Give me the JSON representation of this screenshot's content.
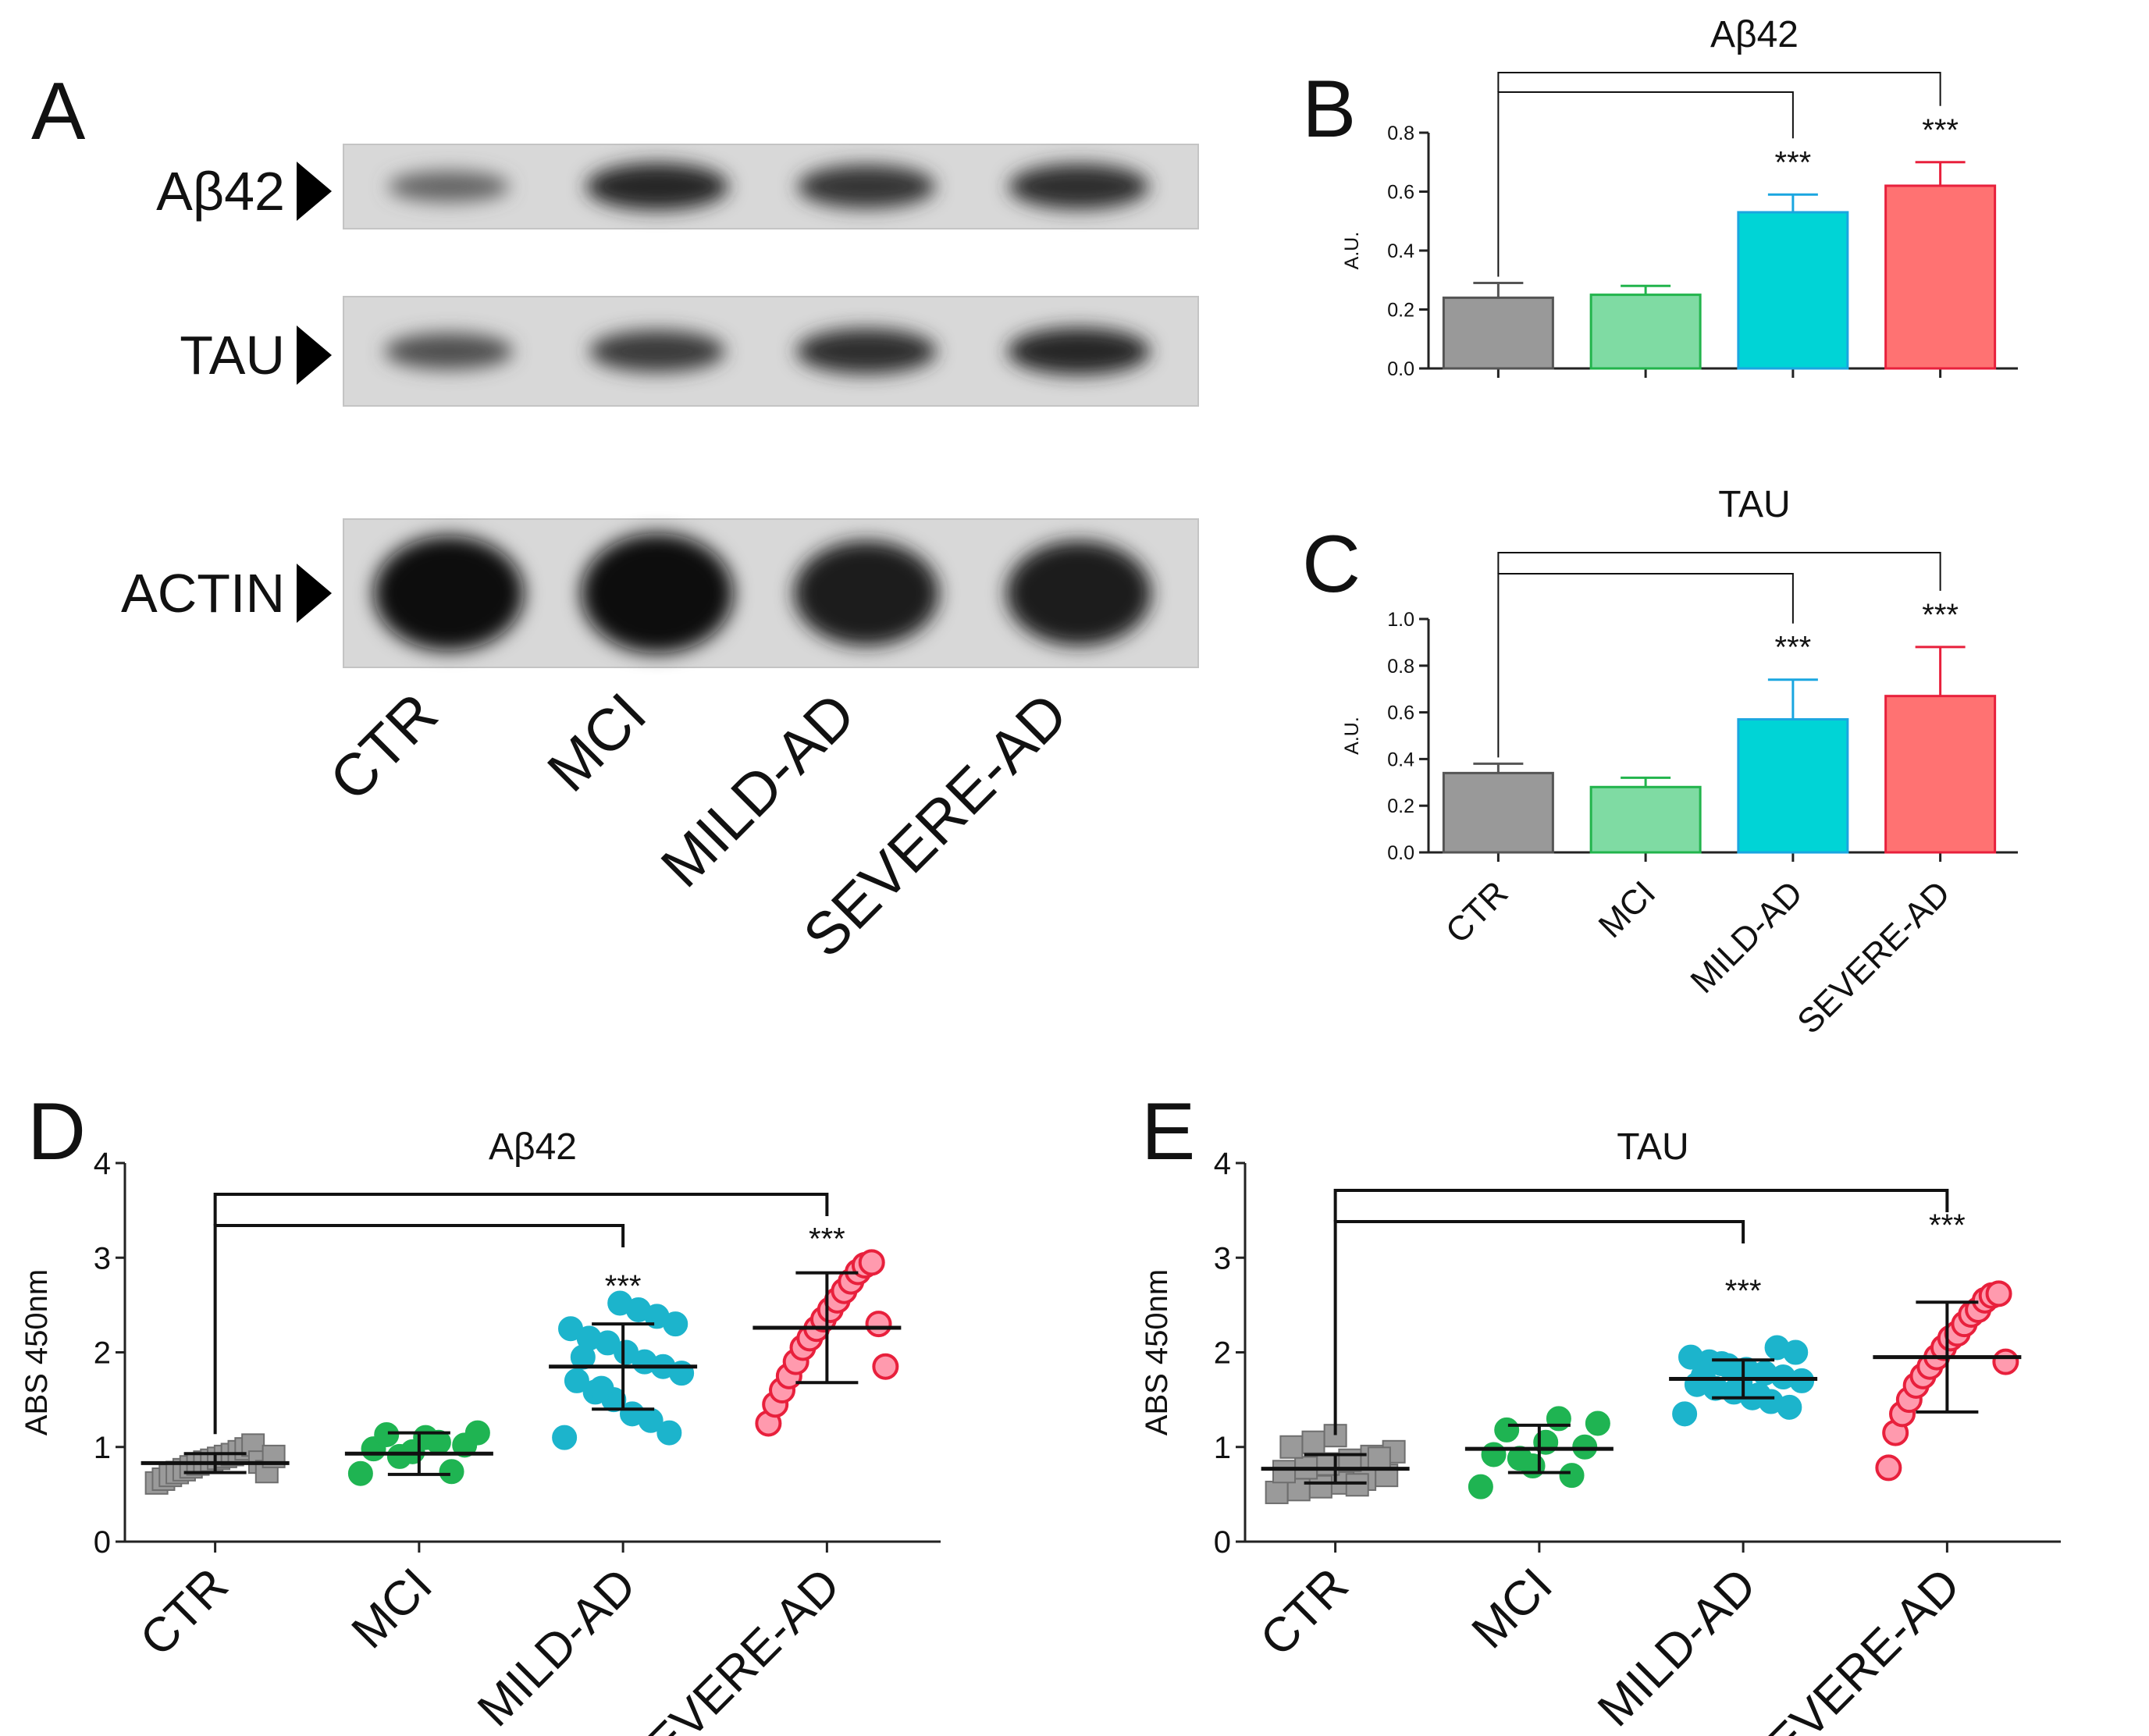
{
  "panels": {
    "A": {
      "letter": "A",
      "rows": [
        {
          "label": "Aβ42",
          "band_intensity": [
            0.35,
            0.8,
            0.7,
            0.75
          ]
        },
        {
          "label": "TAU",
          "band_intensity": [
            0.5,
            0.65,
            0.75,
            0.8
          ]
        },
        {
          "label": "ACTIN",
          "band_intensity": [
            0.95,
            1.0,
            0.85,
            0.85
          ]
        }
      ],
      "lanes": [
        "CTR",
        "MCI",
        "MILD-AD",
        "SEVERE-AD"
      ]
    },
    "B": {
      "letter": "B"
    },
    "C": {
      "letter": "C"
    },
    "D": {
      "letter": "D"
    },
    "E": {
      "letter": "E"
    }
  },
  "colors": {
    "CTR": "#999999",
    "MCI": "#7fdba3",
    "MILD-AD": "#00d4d6",
    "SEVERE-AD": "#ff7272",
    "CTR_edge": "#555555",
    "MCI_edge": "#22b44c",
    "MILD-AD_edge": "#1aa6e0",
    "SEVERE-AD_edge": "#e8203c",
    "MCI_dot": "#1fb452",
    "MILD-AD_dot": "#1cb4cc",
    "SEVERE-AD_dot": "#f25a78"
  },
  "chart_data": [
    {
      "panel": "B",
      "type": "bar",
      "title": "Aβ42",
      "ylabel": "A.U.",
      "categories": [
        "CTR",
        "MCI",
        "MILD-AD",
        "SEVERE-AD"
      ],
      "show_category_labels": false,
      "values": [
        0.24,
        0.25,
        0.53,
        0.62
      ],
      "errors": [
        0.05,
        0.03,
        0.06,
        0.08
      ],
      "ylim": [
        0,
        0.8
      ],
      "yticks": [
        "0.0",
        "0.2",
        "0.4",
        "0.6",
        "0.8"
      ],
      "significance": [
        {
          "from": "CTR",
          "to": "MILD-AD",
          "label": "***"
        },
        {
          "from": "CTR",
          "to": "SEVERE-AD",
          "label": "***"
        }
      ]
    },
    {
      "panel": "C",
      "type": "bar",
      "title": "TAU",
      "ylabel": "A.U.",
      "categories": [
        "CTR",
        "MCI",
        "MILD-AD",
        "SEVERE-AD"
      ],
      "show_category_labels": true,
      "values": [
        0.34,
        0.28,
        0.57,
        0.67
      ],
      "errors": [
        0.04,
        0.04,
        0.17,
        0.21
      ],
      "ylim": [
        0,
        1.0
      ],
      "yticks": [
        "0.0",
        "0.2",
        "0.4",
        "0.6",
        "0.8",
        "1.0"
      ],
      "significance": [
        {
          "from": "CTR",
          "to": "MILD-AD",
          "label": "***"
        },
        {
          "from": "CTR",
          "to": "SEVERE-AD",
          "label": "***"
        }
      ]
    },
    {
      "panel": "D",
      "type": "scatter",
      "title": "Aβ42",
      "ylabel": "ABS 450nm",
      "categories": [
        "CTR",
        "MCI",
        "MILD-AD",
        "SEVERE-AD"
      ],
      "ylim": [
        0,
        4
      ],
      "yticks": [
        "0",
        "1",
        "2",
        "3",
        "4"
      ],
      "groups": [
        {
          "name": "CTR",
          "marker": "square",
          "mean": 0.83,
          "sd": 0.1,
          "points": [
            0.62,
            0.66,
            0.7,
            0.73,
            0.76,
            0.79,
            0.82,
            0.84,
            0.86,
            0.88,
            0.9,
            0.92,
            0.95,
            0.98,
            1.02,
            0.84,
            0.74,
            0.9
          ]
        },
        {
          "name": "MCI",
          "marker": "circle",
          "mean": 0.93,
          "sd": 0.22,
          "points": [
            0.72,
            0.74,
            0.95,
            0.98,
            1.02,
            1.1,
            1.13,
            1.15,
            1.05,
            0.9
          ]
        },
        {
          "name": "MILD-AD",
          "marker": "circle",
          "mean": 1.85,
          "sd": 0.45,
          "points": [
            1.1,
            1.15,
            1.28,
            1.35,
            1.5,
            1.58,
            1.7,
            1.78,
            1.85,
            1.9,
            2.0,
            2.1,
            2.15,
            2.25,
            2.3,
            2.38,
            2.45,
            2.52,
            1.62,
            1.95
          ]
        },
        {
          "name": "SEVERE-AD",
          "marker": "circle",
          "mean": 2.26,
          "sd": 0.58,
          "points": [
            1.25,
            1.45,
            1.6,
            1.75,
            1.9,
            2.05,
            2.15,
            2.25,
            2.35,
            2.45,
            2.55,
            2.65,
            2.75,
            2.85,
            2.92,
            2.95,
            2.3,
            1.85
          ]
        }
      ],
      "significance": [
        {
          "from": "CTR",
          "to": "MILD-AD",
          "label": "***"
        },
        {
          "from": "CTR",
          "to": "SEVERE-AD",
          "label": "***"
        }
      ]
    },
    {
      "panel": "E",
      "type": "scatter",
      "title": "TAU",
      "ylabel": "ABS 450nm",
      "categories": [
        "CTR",
        "MCI",
        "MILD-AD",
        "SEVERE-AD"
      ],
      "ylim": [
        0,
        4
      ],
      "yticks": [
        "0",
        "1",
        "2",
        "3",
        "4"
      ],
      "groups": [
        {
          "name": "CTR",
          "marker": "square",
          "mean": 0.77,
          "sd": 0.15,
          "points": [
            0.52,
            0.55,
            0.58,
            0.62,
            0.66,
            0.7,
            0.74,
            0.78,
            0.82,
            0.86,
            0.9,
            0.95,
            1.0,
            1.05,
            1.12,
            0.6,
            0.88
          ]
        },
        {
          "name": "MCI",
          "marker": "circle",
          "mean": 0.98,
          "sd": 0.25,
          "points": [
            0.58,
            0.7,
            0.8,
            0.92,
            1.0,
            1.05,
            1.18,
            1.25,
            1.3,
            0.88
          ]
        },
        {
          "name": "MILD-AD",
          "marker": "circle",
          "mean": 1.72,
          "sd": 0.2,
          "points": [
            1.35,
            1.42,
            1.48,
            1.52,
            1.58,
            1.62,
            1.66,
            1.7,
            1.74,
            1.78,
            1.82,
            1.86,
            1.9,
            1.95,
            2.0,
            2.05,
            1.55,
            1.68,
            1.88,
            1.75
          ]
        },
        {
          "name": "SEVERE-AD",
          "marker": "circle",
          "mean": 1.95,
          "sd": 0.58,
          "points": [
            0.78,
            1.15,
            1.35,
            1.5,
            1.65,
            1.75,
            1.85,
            1.95,
            2.05,
            2.15,
            2.2,
            2.3,
            2.4,
            2.45,
            2.55,
            2.6,
            2.62,
            1.9
          ]
        }
      ],
      "significance": [
        {
          "from": "CTR",
          "to": "MILD-AD",
          "label": "***"
        },
        {
          "from": "CTR",
          "to": "SEVERE-AD",
          "label": "***"
        }
      ]
    }
  ]
}
